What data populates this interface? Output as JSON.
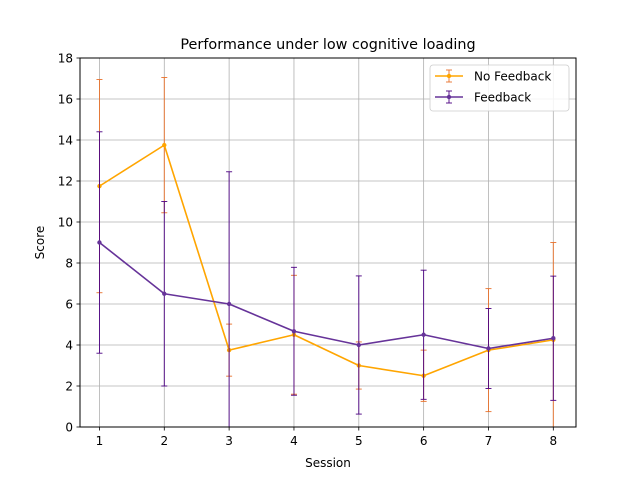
{
  "chart_data": {
    "type": "line",
    "title": "Performance under low cognitive loading",
    "xlabel": "Session",
    "ylabel": "Score",
    "x": [
      1,
      2,
      3,
      4,
      5,
      6,
      7,
      8
    ],
    "xlim": [
      0.7,
      8.35
    ],
    "ylim": [
      0,
      18
    ],
    "xticks": [
      1,
      2,
      3,
      4,
      5,
      6,
      7,
      8
    ],
    "yticks": [
      0,
      2,
      4,
      6,
      8,
      10,
      12,
      14,
      16,
      18
    ],
    "grid": true,
    "legend_position": "top-right",
    "series": [
      {
        "name": "No Feedback",
        "color": "#ffa500",
        "error_color": "#e8712b",
        "values": [
          11.75,
          13.75,
          3.75,
          4.5,
          3.0,
          2.5,
          3.75,
          4.25
        ],
        "error": [
          5.2,
          3.3,
          1.27,
          2.9,
          1.15,
          1.25,
          3.0,
          4.75
        ]
      },
      {
        "name": "Feedback",
        "color": "#663399",
        "error_color": "#4b0082",
        "values": [
          9.0,
          6.5,
          6.0,
          4.67,
          4.0,
          4.5,
          3.83,
          4.33
        ],
        "error": [
          5.4,
          4.5,
          6.45,
          3.12,
          3.37,
          3.15,
          1.95,
          3.03
        ]
      }
    ]
  }
}
